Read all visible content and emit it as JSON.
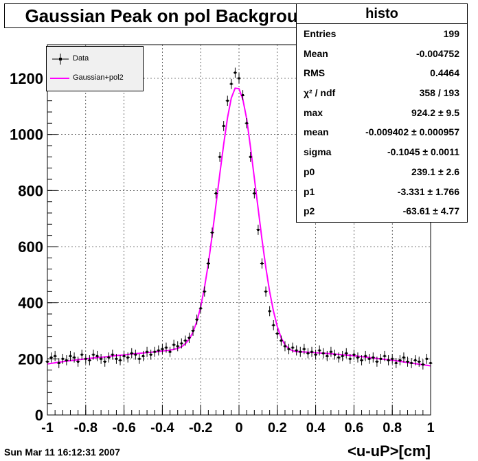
{
  "chart_data": {
    "type": "scatter",
    "title": "Gaussian Peak on pol Background",
    "xlabel": "<u-uP>[cm]",
    "ylabel": "",
    "xlim": [
      -1,
      1
    ],
    "ylim": [
      0,
      1320
    ],
    "xticks": [
      "-1",
      "-0.8",
      "-0.6",
      "-0.4",
      "-0.2",
      "0",
      "0.2",
      "0.4",
      "0.6",
      "0.8",
      "1"
    ],
    "yticks": [
      "0",
      "200",
      "400",
      "600",
      "800",
      "1000",
      "1200"
    ],
    "grid": true,
    "legend_position": "top-left",
    "series": [
      {
        "name": "Data",
        "kind": "points-with-errorbars",
        "color": "#000000",
        "x": [
          -1.0,
          -0.98,
          -0.96,
          -0.94,
          -0.92,
          -0.9,
          -0.88,
          -0.86,
          -0.84,
          -0.82,
          -0.8,
          -0.78,
          -0.76,
          -0.74,
          -0.72,
          -0.7,
          -0.68,
          -0.66,
          -0.64,
          -0.62,
          -0.6,
          -0.58,
          -0.56,
          -0.54,
          -0.52,
          -0.5,
          -0.48,
          -0.46,
          -0.44,
          -0.42,
          -0.4,
          -0.38,
          -0.36,
          -0.34,
          -0.32,
          -0.3,
          -0.28,
          -0.26,
          -0.24,
          -0.22,
          -0.2,
          -0.18,
          -0.16,
          -0.14,
          -0.12,
          -0.1,
          -0.08,
          -0.06,
          -0.04,
          -0.02,
          0.0,
          0.02,
          0.04,
          0.06,
          0.08,
          0.1,
          0.12,
          0.14,
          0.16,
          0.18,
          0.2,
          0.22,
          0.24,
          0.26,
          0.28,
          0.3,
          0.32,
          0.34,
          0.36,
          0.38,
          0.4,
          0.42,
          0.44,
          0.46,
          0.48,
          0.5,
          0.52,
          0.54,
          0.56,
          0.58,
          0.6,
          0.62,
          0.64,
          0.66,
          0.68,
          0.7,
          0.72,
          0.74,
          0.76,
          0.78,
          0.8,
          0.82,
          0.84,
          0.86,
          0.88,
          0.9,
          0.92,
          0.94,
          0.96,
          0.98,
          1.0
        ],
        "y": [
          190,
          205,
          210,
          185,
          200,
          195,
          210,
          205,
          190,
          215,
          200,
          195,
          215,
          210,
          200,
          190,
          205,
          215,
          200,
          195,
          210,
          205,
          220,
          215,
          200,
          210,
          225,
          215,
          225,
          230,
          235,
          240,
          225,
          250,
          245,
          255,
          265,
          275,
          300,
          340,
          380,
          440,
          540,
          650,
          790,
          920,
          1030,
          1120,
          1180,
          1220,
          1200,
          1140,
          1040,
          920,
          790,
          660,
          540,
          440,
          370,
          320,
          290,
          265,
          245,
          235,
          240,
          230,
          225,
          235,
          220,
          225,
          215,
          230,
          220,
          210,
          225,
          215,
          205,
          210,
          220,
          200,
          215,
          205,
          195,
          210,
          200,
          205,
          190,
          200,
          210,
          195,
          200,
          185,
          195,
          205,
          190,
          185,
          195,
          190,
          180,
          200,
          185
        ],
        "yerr": 18
      },
      {
        "name": "Gaussian+pol2",
        "kind": "line",
        "color": "#ff00ff",
        "x": [
          -1.0,
          -0.95,
          -0.9,
          -0.85,
          -0.8,
          -0.75,
          -0.7,
          -0.65,
          -0.6,
          -0.55,
          -0.5,
          -0.45,
          -0.4,
          -0.36,
          -0.32,
          -0.3,
          -0.28,
          -0.26,
          -0.24,
          -0.22,
          -0.2,
          -0.18,
          -0.16,
          -0.14,
          -0.12,
          -0.1,
          -0.08,
          -0.06,
          -0.04,
          -0.02,
          0.0,
          0.02,
          0.04,
          0.06,
          0.08,
          0.1,
          0.12,
          0.14,
          0.16,
          0.18,
          0.2,
          0.22,
          0.24,
          0.26,
          0.28,
          0.3,
          0.35,
          0.4,
          0.45,
          0.5,
          0.55,
          0.6,
          0.65,
          0.7,
          0.75,
          0.8,
          0.85,
          0.9,
          0.95,
          1.0
        ],
        "y": [
          182,
          187,
          192,
          196,
          200,
          204,
          207,
          211,
          214,
          218,
          221,
          224,
          228,
          231,
          237,
          243,
          254,
          270,
          295,
          333,
          385,
          455,
          540,
          640,
          750,
          860,
          965,
          1060,
          1130,
          1165,
          1163,
          1125,
          1055,
          955,
          845,
          735,
          625,
          525,
          440,
          370,
          315,
          275,
          250,
          236,
          229,
          226,
          224,
          222,
          220,
          217,
          214,
          211,
          207,
          203,
          199,
          195,
          190,
          185,
          180,
          175
        ]
      }
    ]
  },
  "stats": {
    "title": "histo",
    "rows": [
      {
        "k": "Entries",
        "v": "199"
      },
      {
        "k": "Mean",
        "v": "-0.004752"
      },
      {
        "k": "RMS",
        "v": "0.4464"
      },
      {
        "k": "χ² / ndf",
        "v": "358 / 193"
      },
      {
        "k": "max",
        "v": "924.2 ± 9.5"
      },
      {
        "k": "mean",
        "v": "-0.009402 ± 0.000957"
      },
      {
        "k": "sigma",
        "v": "-0.1045 ± 0.0011"
      },
      {
        "k": "p0",
        "v": "239.1 ± 2.6"
      },
      {
        "k": "p1",
        "v": "-3.331 ± 1.766"
      },
      {
        "k": "p2",
        "v": "-63.61 ± 4.77"
      }
    ]
  },
  "footer": "Sun Mar 11 16:12:31 2007"
}
